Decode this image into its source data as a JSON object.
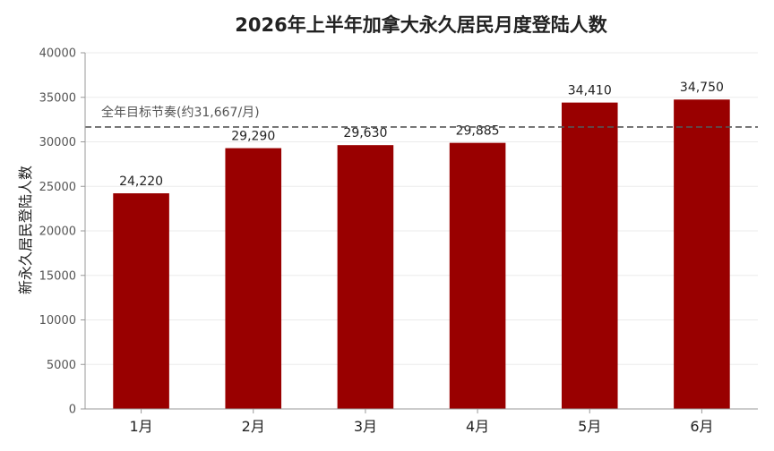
{
  "chart_data": {
    "type": "bar",
    "title": "2026年上半年加拿大永久居民月度登陆人数",
    "xlabel": "",
    "ylabel": "新永久居民登陆人数",
    "categories": [
      "1月",
      "2月",
      "3月",
      "4月",
      "5月",
      "6月"
    ],
    "values": [
      24220,
      29290,
      29630,
      29885,
      34410,
      34750
    ],
    "value_labels": [
      "24,220",
      "29,290",
      "29,630",
      "29,885",
      "34,410",
      "34,750"
    ],
    "ylim": [
      0,
      40000
    ],
    "yticks": [
      0,
      5000,
      10000,
      15000,
      20000,
      25000,
      30000,
      35000,
      40000
    ],
    "grid": "horizontal",
    "bar_color": "#990000",
    "reference_line": {
      "value": 31667,
      "label": "全年目标节奏(约31,667/月)",
      "style": "dashed",
      "color": "#555555"
    }
  }
}
